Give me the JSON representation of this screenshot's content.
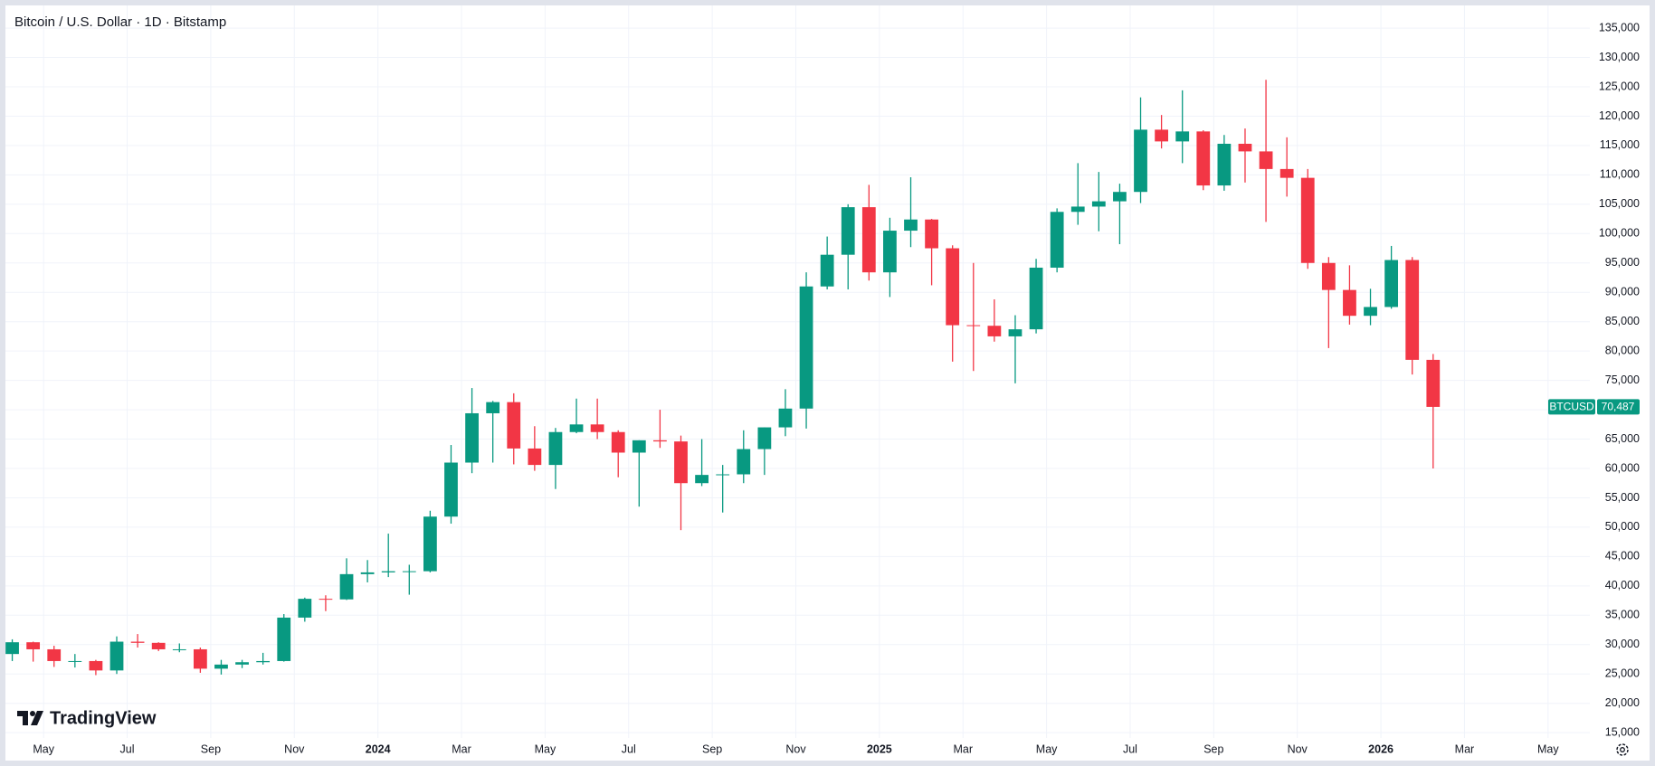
{
  "brand": "TradingView",
  "chart_data": {
    "type": "candlestick",
    "title": "Bitcoin / U.S. Dollar · 1D · Bitstamp",
    "symbol": "BTCUSD",
    "up_color": "#089981",
    "down_color": "#f23645",
    "grid": true,
    "categories": [
      null,
      null,
      "May",
      null,
      null,
      null,
      "Jul",
      null,
      null,
      null,
      "Sep",
      null,
      null,
      null,
      "Nov",
      null,
      null,
      null,
      "2024",
      null,
      null,
      null,
      "Mar",
      null,
      null,
      null,
      "May",
      null,
      null,
      null,
      "Jul",
      null,
      null,
      null,
      "Sep",
      null,
      null,
      null,
      "Nov",
      null,
      null,
      null,
      "2025",
      null,
      null,
      null,
      "Mar",
      null,
      null,
      null,
      "May",
      null,
      null,
      null,
      "Jul",
      null,
      null,
      null,
      "Sep",
      null,
      null,
      null,
      "Nov",
      null,
      null,
      null,
      "2026",
      null,
      null,
      null,
      "Mar",
      null,
      null,
      null,
      "May",
      null
    ],
    "open": [
      28400,
      30400,
      29200,
      27200,
      27200,
      25600,
      30500,
      30300,
      29200,
      29200,
      25900,
      26600,
      27000,
      27200,
      34600,
      37800,
      37700,
      42000,
      42300,
      42500,
      42500,
      51800,
      61000,
      69400,
      71300,
      63400,
      60600,
      66200,
      67500,
      66200,
      62700,
      64800,
      64600,
      57500,
      58900,
      59000,
      63300,
      67000,
      70200,
      91000,
      96400,
      104500,
      93400,
      100500,
      102400,
      97500,
      84400,
      84300,
      82500,
      83700,
      94200,
      103700,
      104600,
      105500,
      107100,
      117700,
      115700,
      117400,
      108200,
      115300,
      114000,
      111000,
      109500,
      95000,
      90400,
      86000,
      87500,
      95500,
      78500,
      null,
      null,
      null,
      null,
      null,
      null,
      null
    ],
    "high": [
      30900,
      30500,
      29800,
      28400,
      27400,
      31400,
      31800,
      30400,
      30200,
      29500,
      27400,
      27400,
      28600,
      35200,
      38000,
      38400,
      44700,
      44400,
      48900,
      43600,
      52800,
      64000,
      73700,
      71500,
      72800,
      67200,
      66900,
      71900,
      71900,
      66500,
      64800,
      70000,
      65600,
      65000,
      60600,
      66500,
      67000,
      73500,
      93400,
      99500,
      105000,
      108300,
      102700,
      109600,
      102500,
      98000,
      95000,
      88800,
      86100,
      95700,
      104300,
      112000,
      110500,
      108500,
      123200,
      120200,
      124400,
      117600,
      116800,
      117900,
      126200,
      116400,
      111000,
      96000,
      94600,
      90600,
      97900,
      96000,
      79500,
      null,
      null,
      null,
      null,
      null,
      null,
      null
    ],
    "low": [
      27200,
      27100,
      26200,
      26100,
      24800,
      25000,
      29500,
      28900,
      28700,
      25200,
      24900,
      26000,
      26600,
      27100,
      33900,
      35700,
      37600,
      40600,
      41500,
      38500,
      42300,
      50600,
      59200,
      61000,
      60700,
      59600,
      56500,
      66000,
      65000,
      58500,
      53500,
      63500,
      49500,
      57000,
      52500,
      57500,
      58900,
      65500,
      66800,
      90500,
      90500,
      92000,
      89200,
      97700,
      91200,
      78200,
      76600,
      81600,
      74500,
      83000,
      93400,
      101500,
      100400,
      98200,
      105200,
      114500,
      112000,
      107400,
      107300,
      108700,
      102000,
      106300,
      94000,
      80500,
      84500,
      84400,
      87200,
      76000,
      60000,
      null,
      null,
      null,
      null,
      null,
      null,
      null
    ],
    "close": [
      30400,
      29200,
      27200,
      27200,
      25600,
      30500,
      30300,
      29200,
      29200,
      25900,
      26600,
      27000,
      27200,
      34600,
      37800,
      37700,
      42000,
      42300,
      42500,
      42500,
      51800,
      61000,
      69400,
      71300,
      63400,
      60600,
      66200,
      67500,
      66200,
      62700,
      64800,
      64600,
      57500,
      58900,
      59000,
      63300,
      67000,
      70200,
      91000,
      96400,
      104500,
      93400,
      100500,
      102400,
      97500,
      84400,
      84300,
      82500,
      83700,
      94200,
      103700,
      104600,
      105500,
      107100,
      117700,
      115700,
      117400,
      108200,
      115300,
      114000,
      111000,
      109500,
      95000,
      90400,
      86000,
      87500,
      95500,
      78500,
      70487,
      null,
      null,
      null,
      null,
      null,
      null,
      null
    ],
    "last_price": {
      "value": 70487,
      "label": "70,487"
    },
    "ylim": [
      14100,
      138400
    ],
    "yticks": [
      {
        "value": 15000,
        "label": "15,000"
      },
      {
        "value": 20000,
        "label": "20,000"
      },
      {
        "value": 25000,
        "label": "25,000"
      },
      {
        "value": 30000,
        "label": "30,000"
      },
      {
        "value": 35000,
        "label": "35,000"
      },
      {
        "value": 40000,
        "label": "40,000"
      },
      {
        "value": 45000,
        "label": "45,000"
      },
      {
        "value": 50000,
        "label": "50,000"
      },
      {
        "value": 55000,
        "label": "55,000"
      },
      {
        "value": 60000,
        "label": "60,000"
      },
      {
        "value": 65000,
        "label": "65,000"
      },
      {
        "value": 70000,
        "label": "70,000"
      },
      {
        "value": 75000,
        "label": "75,000"
      },
      {
        "value": 80000,
        "label": "80,000"
      },
      {
        "value": 85000,
        "label": "85,000"
      },
      {
        "value": 90000,
        "label": "90,000"
      },
      {
        "value": 95000,
        "label": "95,000"
      },
      {
        "value": 100000,
        "label": "100,000"
      },
      {
        "value": 105000,
        "label": "105,000"
      },
      {
        "value": 110000,
        "label": "110,000"
      },
      {
        "value": 115000,
        "label": "115,000"
      },
      {
        "value": 120000,
        "label": "120,000"
      },
      {
        "value": 125000,
        "label": "125,000"
      },
      {
        "value": 130000,
        "label": "130,000"
      },
      {
        "value": 135000,
        "label": "135,000"
      }
    ]
  }
}
